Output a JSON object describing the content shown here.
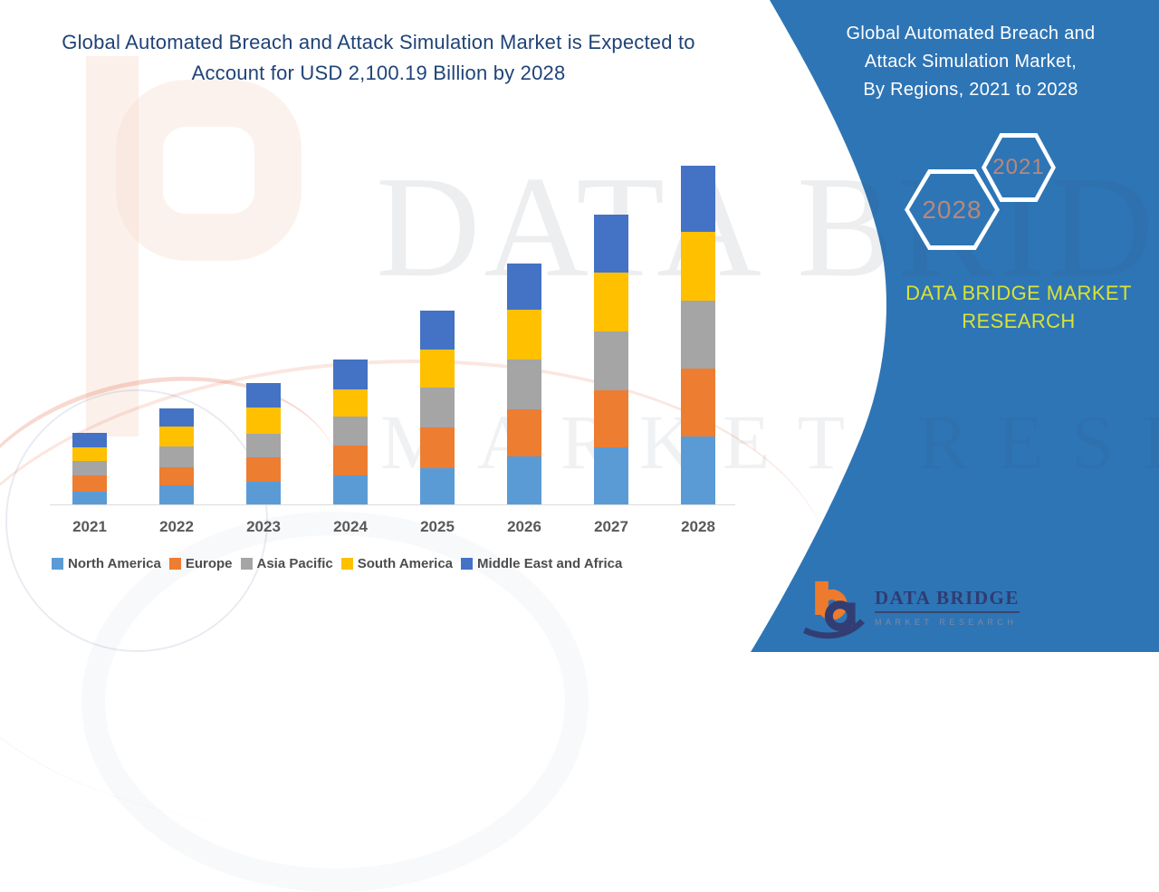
{
  "main_title": {
    "line1": "Global Automated Breach and Attack Simulation Market is Expected to",
    "line2": "Account for USD 2,100.19 Billion by 2028"
  },
  "panel": {
    "bg_color": "#2E75B6",
    "title_lines": [
      "Global Automated Breach and",
      "Attack Simulation Market,",
      "By Regions, 2021 to 2028"
    ],
    "hexagons": [
      {
        "label": "2021"
      },
      {
        "label": "2028"
      }
    ],
    "hex_text_color": "#BA8877",
    "brand": {
      "line1": "DATA BRIDGE MARKET",
      "line2": "RESEARCH",
      "color": "#D8E335"
    },
    "logo": {
      "name": "DATA BRIDGE",
      "sub": "MARKET RESEARCH"
    }
  },
  "watermark": {
    "line1": "DATA BRIDGE",
    "line2": "MARKET RESEARCH"
  },
  "chart_data": {
    "type": "bar",
    "stacked": true,
    "title": "Global Automated Breach and Attack Simulation Market, By Regions, 2021 to 2028",
    "unit": "USD Billion (estimated from bar heights; 2028 total anchored to title value)",
    "categories": [
      "2021",
      "2022",
      "2023",
      "2024",
      "2025",
      "2026",
      "2027",
      "2028"
    ],
    "series": [
      {
        "name": "North America",
        "color": "#5B9BD5",
        "values": [
          78.6,
          117.9,
          140.4,
          179.7,
          224.6,
          297.6,
          353.8,
          421.2
        ]
      },
      {
        "name": "Europe",
        "color": "#ED7D31",
        "values": [
          101.1,
          112.3,
          151.6,
          185.3,
          252.7,
          292.0,
          353.8,
          421.2
        ]
      },
      {
        "name": "Asia Pacific",
        "color": "#A5A5A5",
        "values": [
          89.8,
          129.2,
          146.0,
          179.7,
          247.1,
          308.9,
          365.0,
          421.2
        ]
      },
      {
        "name": "South America",
        "color": "#FFC000",
        "values": [
          84.2,
          123.5,
          162.8,
          168.5,
          235.8,
          308.9,
          365.0,
          426.8
        ]
      },
      {
        "name": "Middle East and Africa",
        "color": "#4472C4",
        "values": [
          89.8,
          112.3,
          151.6,
          185.3,
          241.5,
          286.4,
          359.4,
          409.79
        ]
      }
    ],
    "totals_estimated": [
      443.5,
      595.2,
      752.4,
      898.5,
      1201.7,
      1493.8,
      1797.0,
      2100.19
    ],
    "ylim": [
      0,
      2200
    ],
    "gridlines": false,
    "y_axis_shown": false,
    "legend_position": "bottom"
  }
}
